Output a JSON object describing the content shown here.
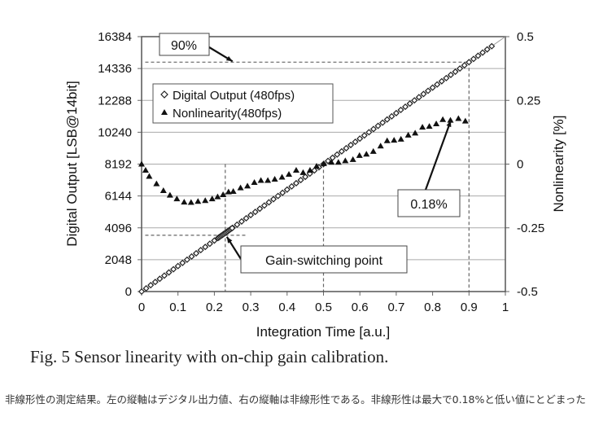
{
  "chart_data": {
    "type": "scatter",
    "title": "Fig. 5 Sensor linearity with on-chip gain calibration.",
    "xlabel": "Integration Time [a.u.]",
    "ylabel": "Digital Output [LSB@14bit]",
    "y2label": "Nonlinearity [%]",
    "xlim": [
      0,
      1
    ],
    "ylim": [
      0,
      16384
    ],
    "y2lim": [
      -0.5,
      0.5
    ],
    "xticks": [
      "0",
      "0.1",
      "0.2",
      "0.3",
      "0.4",
      "0.5",
      "0.6",
      "0.7",
      "0.8",
      "0.9",
      "1"
    ],
    "yticks": [
      "0",
      "2048",
      "4096",
      "6144",
      "8192",
      "10240",
      "12288",
      "14336",
      "16384"
    ],
    "y2ticks": [
      "-0.5",
      "-0.25",
      "0",
      "0.25",
      "0.5"
    ],
    "grid": "horizontal",
    "legend_position": "upper-left",
    "series": [
      {
        "name": "Digital Output (480fps)",
        "marker": "diamond-open",
        "axis": "left",
        "x_start": 0,
        "x_end": 0.97,
        "x_step": 0.0125,
        "slope_per_unit_x": 16384,
        "dense_region": [
          0.21,
          0.25
        ]
      },
      {
        "name": "Nonlinearity(480fps)",
        "marker": "triangle-filled",
        "axis": "right",
        "x": [
          0,
          0.011,
          0.021,
          0.041,
          0.06,
          0.078,
          0.097,
          0.117,
          0.136,
          0.155,
          0.175,
          0.194,
          0.209,
          0.224,
          0.239,
          0.252,
          0.272,
          0.291,
          0.31,
          0.328,
          0.347,
          0.366,
          0.386,
          0.405,
          0.425,
          0.444,
          0.463,
          0.481,
          0.501,
          0.522,
          0.541,
          0.56,
          0.581,
          0.599,
          0.618,
          0.637,
          0.657,
          0.675,
          0.694,
          0.713,
          0.733,
          0.752,
          0.772,
          0.791,
          0.81,
          0.828,
          0.849,
          0.871,
          0.89
        ],
        "y": [
          0,
          -0.024,
          -0.048,
          -0.077,
          -0.104,
          -0.122,
          -0.136,
          -0.149,
          -0.15,
          -0.146,
          -0.143,
          -0.136,
          -0.128,
          -0.12,
          -0.109,
          -0.107,
          -0.093,
          -0.086,
          -0.072,
          -0.064,
          -0.064,
          -0.059,
          -0.051,
          -0.04,
          -0.024,
          -0.033,
          -0.024,
          -0.008,
          0.002,
          0.007,
          0.007,
          0.013,
          0.018,
          0.034,
          0.039,
          0.05,
          0.071,
          0.092,
          0.094,
          0.098,
          0.114,
          0.122,
          0.145,
          0.148,
          0.158,
          0.175,
          0.172,
          0.179,
          0.169
        ]
      }
    ],
    "annotations": [
      {
        "text": "90%",
        "target_y": 14745
      },
      {
        "text": "0.18%",
        "target": [
          0.85,
          0.18
        ]
      },
      {
        "text": "Gain-switching point",
        "target": [
          0.23,
          3620
        ]
      }
    ]
  },
  "caption": "非線形性の測定結果。左の縦軸はデジタル出力値、右の縦軸は非線形性である。非線形性は最大で0.18%と低い値にとどまった"
}
